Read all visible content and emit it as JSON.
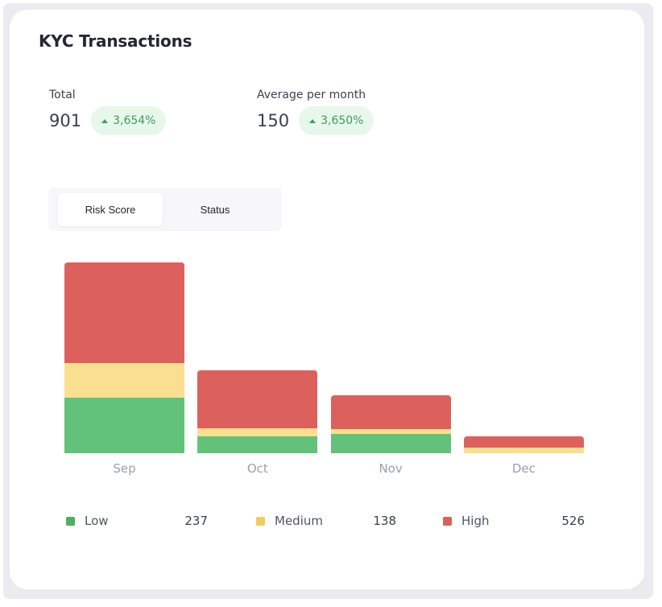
{
  "card": {
    "title": "KYC Transactions"
  },
  "stats": {
    "total": {
      "label": "Total",
      "value": "901",
      "change": "3,654%",
      "change_direction": "up"
    },
    "average": {
      "label": "Average per month",
      "value": "150",
      "change": "3,650%",
      "change_direction": "up"
    }
  },
  "toggle": {
    "options": [
      {
        "label": "Risk Score",
        "active": true
      },
      {
        "label": "Status",
        "active": false
      }
    ]
  },
  "legend": [
    {
      "label": "Low",
      "value": "237",
      "color": "#4caf66"
    },
    {
      "label": "Medium",
      "value": "138",
      "color": "#f0cc5c"
    },
    {
      "label": "High",
      "value": "526",
      "color": "#dc615d"
    }
  ],
  "colors": {
    "low": "#62c27a",
    "medium": "#f9df8f",
    "high": "#dc615d",
    "badge_bg": "#e7f7ec",
    "badge_text": "#3f9b5e"
  },
  "chart_data": {
    "type": "bar",
    "stacked": true,
    "title": "KYC Transactions",
    "xlabel": "",
    "ylabel": "",
    "categories": [
      "Sep",
      "Oct",
      "Nov",
      "Dec"
    ],
    "series": [
      {
        "name": "Low",
        "values": [
          144,
          44,
          49,
          0
        ]
      },
      {
        "name": "Medium",
        "values": [
          89,
          21,
          13,
          15
        ]
      },
      {
        "name": "High",
        "values": [
          260,
          150,
          87,
          29
        ]
      }
    ],
    "totals": {
      "Low": 237,
      "Medium": 138,
      "High": 526,
      "All": 901
    },
    "ylim": [
      0,
      493
    ],
    "grid": false,
    "legend_position": "bottom"
  }
}
